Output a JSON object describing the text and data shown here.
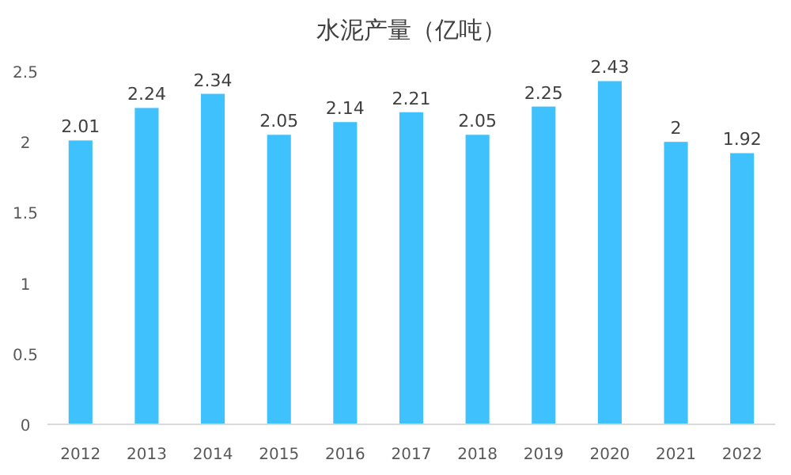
{
  "chart_data": {
    "type": "bar",
    "title": "水泥产量（亿吨）",
    "categories": [
      "2012",
      "2013",
      "2014",
      "2015",
      "2016",
      "2017",
      "2018",
      "2019",
      "2020",
      "2021",
      "2022"
    ],
    "values": [
      2.01,
      2.24,
      2.34,
      2.05,
      2.14,
      2.21,
      2.05,
      2.25,
      2.43,
      2,
      1.92
    ],
    "color": "#3ec1fd",
    "ylim": [
      0,
      2.5
    ],
    "yticks": [
      0,
      0.5,
      1,
      1.5,
      2,
      2.5
    ],
    "grid": false,
    "data_labels": true
  }
}
